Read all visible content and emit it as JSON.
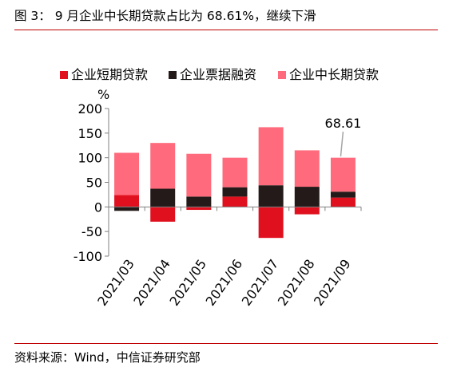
{
  "figure": {
    "title": "图 3：  9 月企业中长期贷款占比为 68.61%，继续下滑",
    "source": "资料来源：Wind，中信证券研究部"
  },
  "chart_data": {
    "type": "bar",
    "stacked": true,
    "categories": [
      "2021/03",
      "2021/04",
      "2021/05",
      "2021/06",
      "2021/07",
      "2021/08",
      "2021/09"
    ],
    "series": [
      {
        "name": "企业短期贷款",
        "color": "#e0101e",
        "values": [
          24,
          -30,
          -6,
          21,
          -63,
          -15,
          19
        ]
      },
      {
        "name": "企业票据融资",
        "color": "#231a19",
        "values": [
          -8,
          37,
          21,
          19,
          44,
          41,
          12
        ]
      },
      {
        "name": "企业中长期贷款",
        "color": "#ff6b7c",
        "values": [
          86,
          93,
          87,
          60,
          118,
          74,
          69
        ]
      }
    ],
    "yunit": "%",
    "ylim": [
      -100,
      200
    ],
    "yticks": [
      200,
      150,
      100,
      50,
      0,
      -50,
      -100
    ],
    "legend_position": "top",
    "grid": false,
    "annotation": {
      "text": "68.61",
      "category": "2021/09"
    }
  }
}
